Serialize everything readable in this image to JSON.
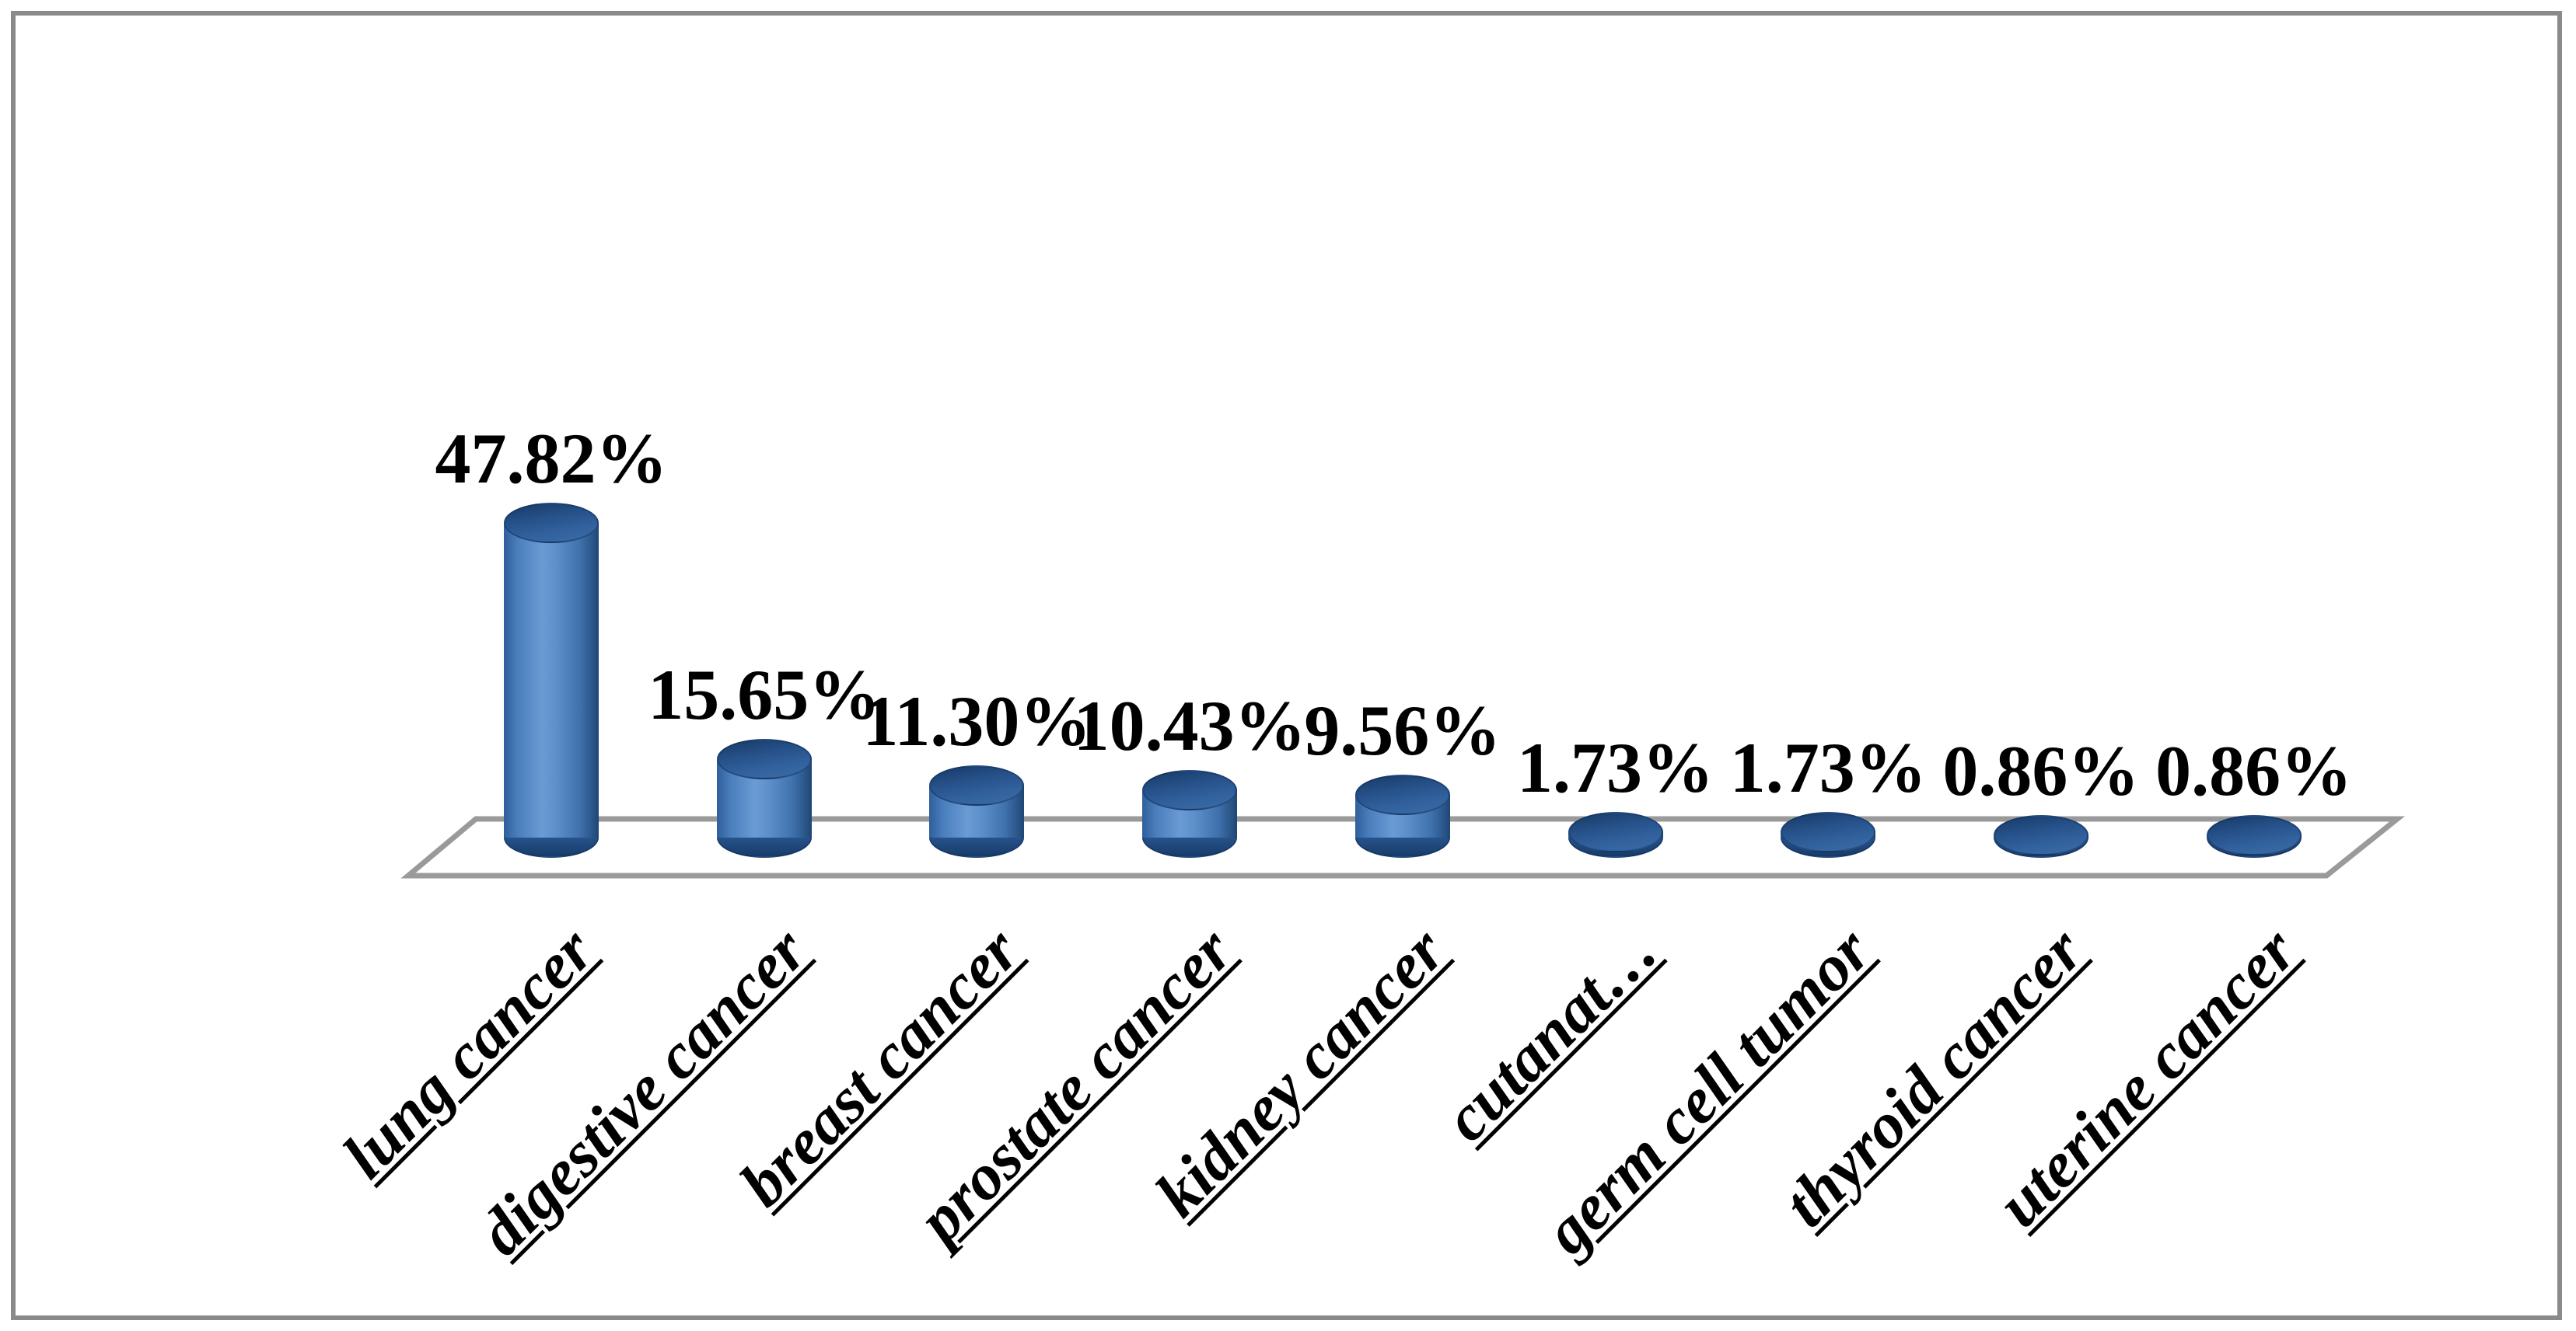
{
  "chart_data": {
    "type": "bar",
    "subtype": "3d-cylinder",
    "title": "",
    "xlabel": "",
    "ylabel": "",
    "legend_position": "none",
    "grid": false,
    "categories": [
      "lung cancer",
      "digestive cancer",
      "breast cancer",
      "prostate cancer",
      "kidney cancer",
      "cutanat…",
      "germ cell tumor",
      "thyroid cancer",
      "uterine cancer"
    ],
    "values": [
      47.82,
      15.65,
      11.3,
      10.43,
      9.56,
      1.73,
      1.73,
      0.86,
      0.86
    ],
    "value_labels": [
      "47.82%",
      "15.65%",
      "11.30%",
      "10.43%",
      "9.56%",
      "1.73%",
      "1.73%",
      "0.86%",
      "0.86%"
    ],
    "colors": {
      "bar_fill": "#4a7fbd",
      "bar_highlight": "#6a9bd4",
      "bar_edge": "#1f4672",
      "floor_line": "#9a9a9a",
      "frame_border": "#8a8a8a",
      "label_text": "#000000",
      "background": "#ffffff"
    }
  }
}
